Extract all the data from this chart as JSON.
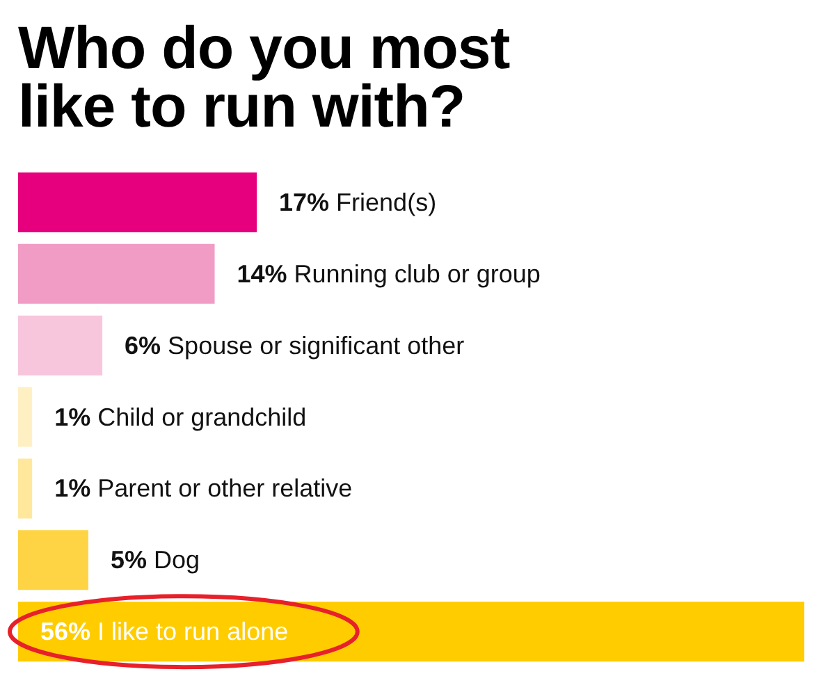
{
  "chart_data": {
    "type": "bar",
    "orientation": "horizontal",
    "tick_labels": false,
    "title": "Who do you most like to run with?",
    "categories": [
      "Friend(s)",
      "Running club or group",
      "Spouse or significant other",
      "Child or grandchild",
      "Parent or other relative",
      "Dog",
      "I like to run alone"
    ],
    "values": [
      17,
      14,
      6,
      1,
      1,
      5,
      56
    ],
    "value_labels": [
      "17%",
      "14%",
      "6%",
      "1%",
      "1%",
      "5%",
      "56%"
    ],
    "colors": [
      "#e6007e",
      "#f09cc4",
      "#f8c6dc",
      "#fff0c4",
      "#ffe89c",
      "#ffd444",
      "#ffcc00"
    ]
  }
}
